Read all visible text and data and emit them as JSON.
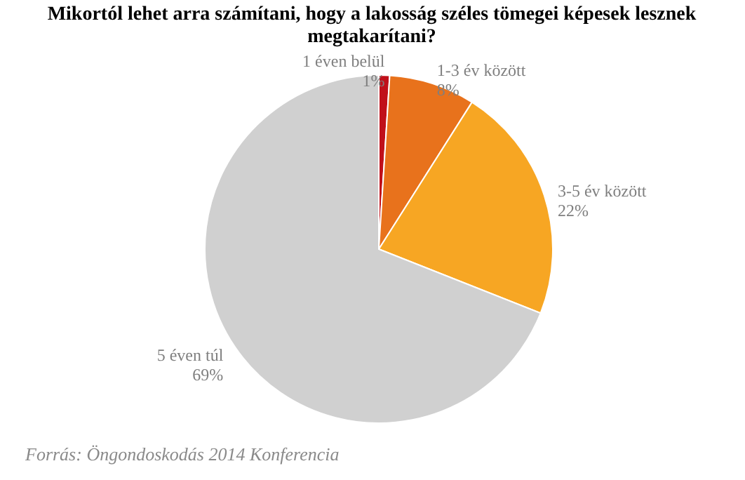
{
  "chart_data": {
    "type": "pie",
    "title": "Mikortól lehet arra számítani, hogy a lakosság széles tömegei képesek lesznek megtakarítani?",
    "categories": [
      "1 éven belül",
      "1-3 év között",
      "3-5 év között",
      "5 éven túl"
    ],
    "values": [
      1,
      8,
      22,
      69
    ],
    "colors": [
      "#c0101a",
      "#e8721c",
      "#f7a623",
      "#d0d0d0"
    ],
    "value_labels": [
      "1%",
      "8%",
      "22%",
      "69%"
    ],
    "annotations": [
      "Forrás: Öngondoskodás 2014 Konferencia"
    ]
  }
}
